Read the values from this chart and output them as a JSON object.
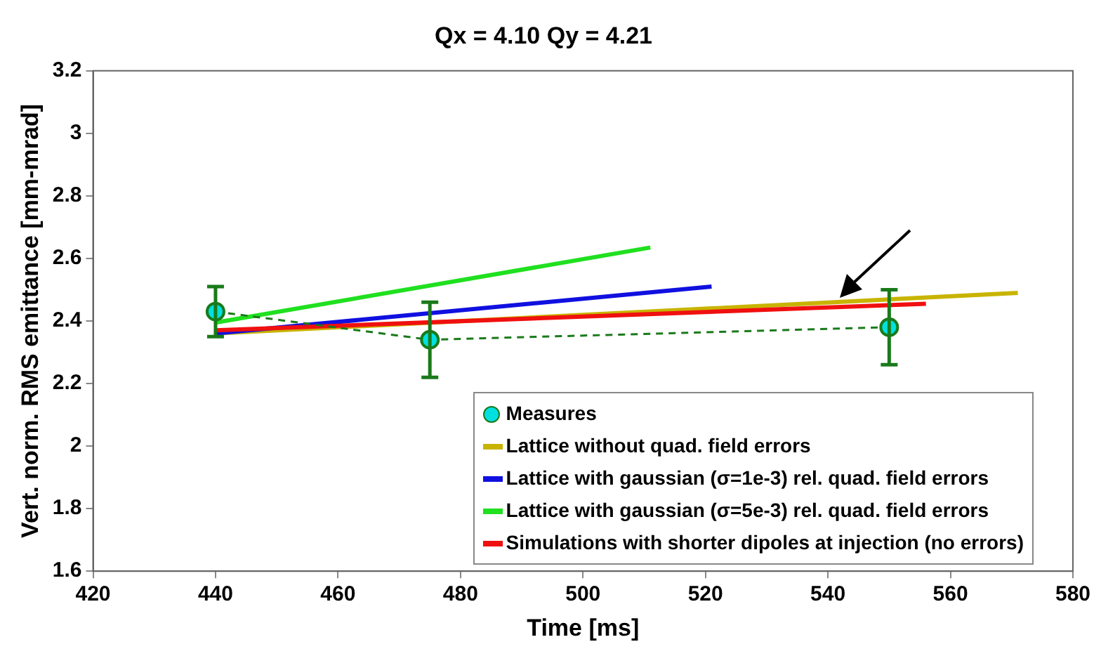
{
  "chart_data": {
    "type": "line",
    "title": "Qx = 4.10 Qy = 4.21",
    "xlabel": "Time [ms]",
    "ylabel": "Vert. norm. RMS emittance [mm-mrad]",
    "xlim": [
      420,
      580
    ],
    "xticks": [
      420,
      440,
      460,
      480,
      500,
      520,
      540,
      560,
      580
    ],
    "ylim": [
      1.6,
      3.2
    ],
    "yticks": [
      1.6,
      1.8,
      2,
      2.2,
      2.4,
      2.6,
      2.8,
      3,
      3.2
    ],
    "grid": false,
    "legend": "bottom right",
    "series": [
      {
        "name": "Measures",
        "color": "#00e0e0",
        "x": [
          440,
          475,
          550
        ],
        "values": [
          2.43,
          2.34,
          2.38
        ],
        "errors": [
          [
            2.35,
            2.51
          ],
          [
            2.22,
            2.46
          ],
          [
            2.26,
            2.5
          ]
        ],
        "marker": "circle",
        "line_style": "dashed"
      },
      {
        "name": "Lattice without quad. field errors",
        "color": "#c8b400",
        "x": [
          440,
          571
        ],
        "values": [
          2.36,
          2.49
        ],
        "marker": "none",
        "line_style": "solid"
      },
      {
        "name": "Lattice with gaussian (σ=1e-3) rel. quad. field errors",
        "color": "#1010e0",
        "x": [
          440,
          521
        ],
        "values": [
          2.36,
          2.51
        ],
        "marker": "none",
        "line_style": "solid"
      },
      {
        "name": "Lattice with gaussian (σ=5e-3) rel. quad. field errors",
        "color": "#20e020",
        "x": [
          440,
          511
        ],
        "values": [
          2.395,
          2.635
        ],
        "marker": "none",
        "line_style": "solid"
      },
      {
        "name": "Simulations with shorter dipoles at injection (no errors)",
        "color": "#f01010",
        "x": [
          440,
          556
        ],
        "values": [
          2.37,
          2.455
        ],
        "marker": "none",
        "line_style": "solid"
      }
    ]
  }
}
